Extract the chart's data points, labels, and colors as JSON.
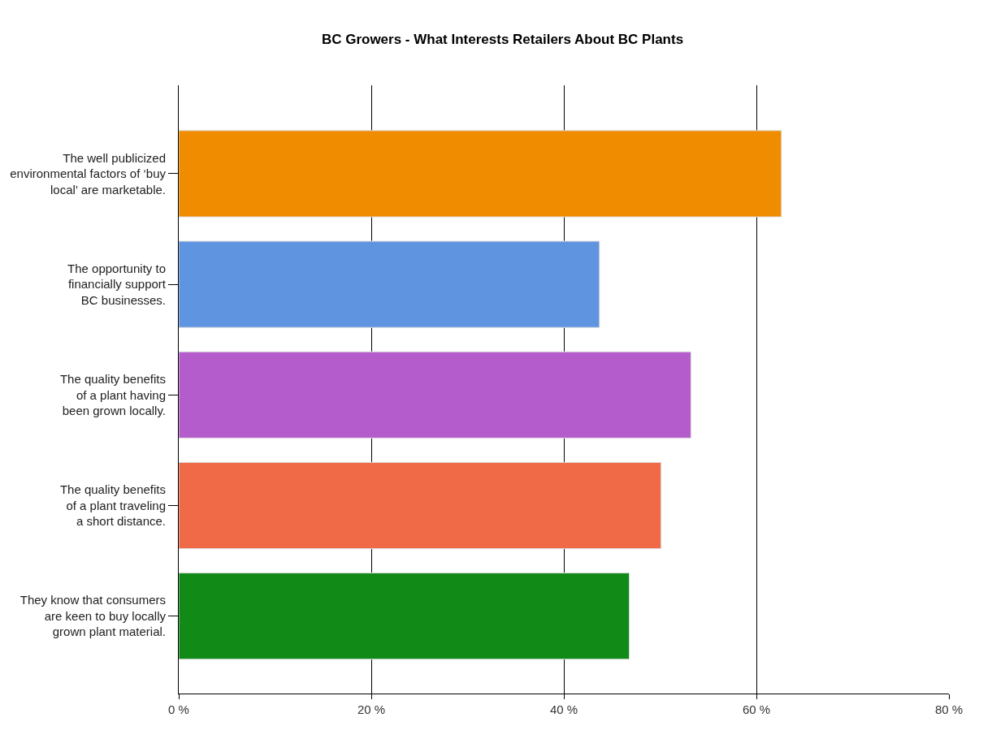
{
  "chart_data": {
    "type": "bar",
    "orientation": "horizontal",
    "title": "BC Growers - What Interests Retailers About BC Plants",
    "categories": [
      "The well publicized\nenvironmental factors of ‘buy\nlocal’ are marketable.",
      "The opportunity to\nfinancially support\nBC businesses.",
      "The quality benefits\nof a plant having\nbeen grown locally.",
      "The quality benefits\nof a plant traveling\na short distance.",
      "They know that consumers\nare keen to buy locally\ngrown plant material."
    ],
    "values": [
      62.6,
      43.7,
      53.2,
      50.1,
      46.8
    ],
    "colors": [
      "#f08c00",
      "#5f95e0",
      "#b55ccc",
      "#f06a48",
      "#118a18"
    ],
    "xlim": [
      0,
      80
    ],
    "xticks": [
      {
        "value": 0,
        "label": "0 %"
      },
      {
        "value": 20,
        "label": "20 %"
      },
      {
        "value": 40,
        "label": "40 %"
      },
      {
        "value": 60,
        "label": "60 %"
      },
      {
        "value": 80,
        "label": "80 %"
      }
    ],
    "grid": "x"
  }
}
